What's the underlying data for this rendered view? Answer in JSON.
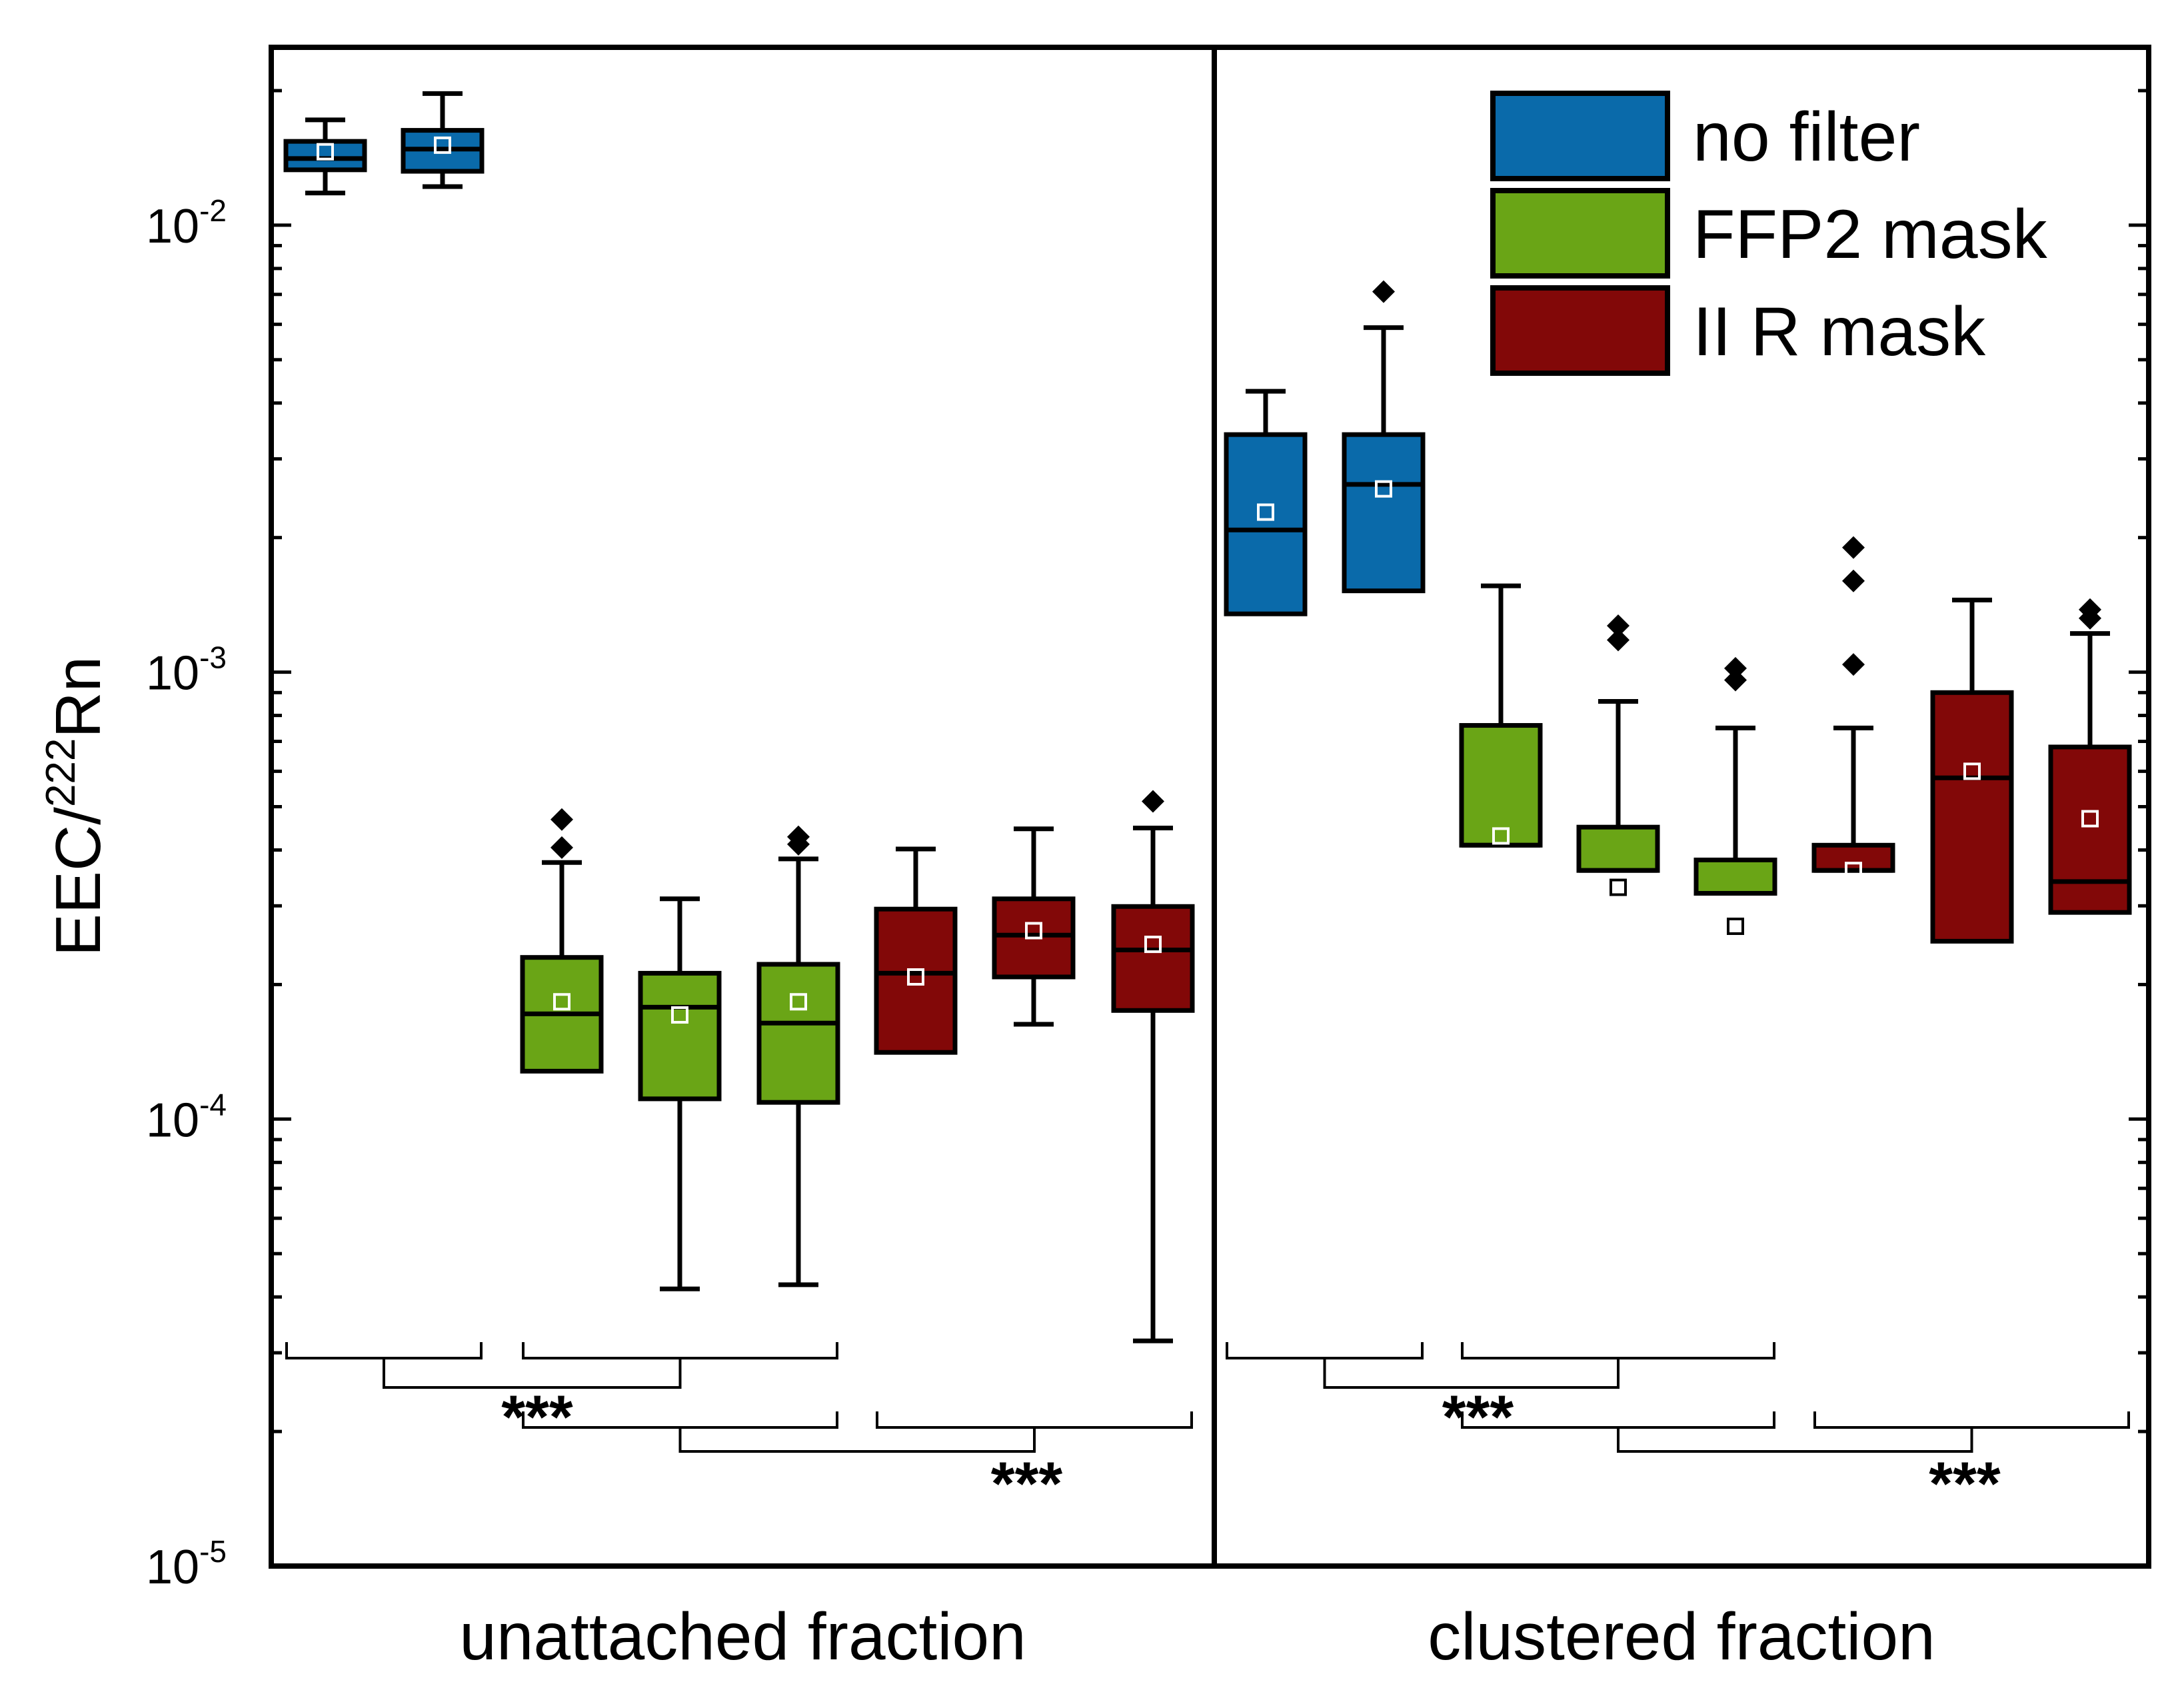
{
  "chart_data": {
    "type": "boxplot",
    "y_scale": "log",
    "ylim": [
      1e-05,
      0.025
    ],
    "ylabel": {
      "prefix": "EEC/",
      "superscript": "222",
      "suffix": "Rn"
    },
    "y_ticks": [
      {
        "value": 0.01,
        "base": "10",
        "exp": "-2"
      },
      {
        "value": 0.001,
        "base": "10",
        "exp": "-3"
      },
      {
        "value": 0.0001,
        "base": "10",
        "exp": "-4"
      },
      {
        "value": 1e-05,
        "base": "10",
        "exp": "-5"
      }
    ],
    "colors": {
      "no_filter": "#0a6aaa",
      "ffp2": "#6aa516",
      "iir": "#820808",
      "axis": "#000000"
    },
    "legend": [
      {
        "key": "no_filter",
        "label": "no filter"
      },
      {
        "key": "ffp2",
        "label": "FFP2 mask"
      },
      {
        "key": "iir",
        "label": "II R mask"
      }
    ],
    "panels": [
      {
        "label": "unattached fraction",
        "boxes": [
          {
            "group": "no_filter",
            "whisker_low": 0.0118,
            "q1": 0.0133,
            "median": 0.0141,
            "q3": 0.0154,
            "whisker_high": 0.0172,
            "mean": 0.0146,
            "outliers": []
          },
          {
            "group": "no_filter",
            "whisker_low": 0.0122,
            "q1": 0.0132,
            "median": 0.0148,
            "q3": 0.0163,
            "whisker_high": 0.0197,
            "mean": 0.0151,
            "outliers": []
          },
          {
            "group": "ffp2",
            "whisker_low": 0.000128,
            "q1": 0.000128,
            "median": 0.000172,
            "q3": 0.00023,
            "whisker_high": 0.000375,
            "mean": 0.000183,
            "outliers": [
              0.000405,
              0.000468
            ]
          },
          {
            "group": "ffp2",
            "whisker_low": 4.17e-05,
            "q1": 0.000111,
            "median": 0.000178,
            "q3": 0.000212,
            "whisker_high": 0.000311,
            "mean": 0.000171,
            "outliers": []
          },
          {
            "group": "ffp2",
            "whisker_low": 4.26e-05,
            "q1": 0.000109,
            "median": 0.000164,
            "q3": 0.000222,
            "whisker_high": 0.000382,
            "mean": 0.000183,
            "outliers": [
              0.000412,
              0.000428
            ]
          },
          {
            "group": "iir",
            "whisker_low": 0.000141,
            "q1": 0.000141,
            "median": 0.000212,
            "q3": 0.000295,
            "whisker_high": 0.000402,
            "mean": 0.000208,
            "outliers": []
          },
          {
            "group": "iir",
            "whisker_low": 0.000163,
            "q1": 0.000208,
            "median": 0.000258,
            "q3": 0.000311,
            "whisker_high": 0.000446,
            "mean": 0.000264,
            "outliers": []
          },
          {
            "group": "iir",
            "whisker_low": 3.19e-05,
            "q1": 0.000175,
            "median": 0.000239,
            "q3": 0.000299,
            "whisker_high": 0.000448,
            "mean": 0.000246,
            "outliers": [
              0.000514
            ]
          }
        ],
        "comparisons": [
          {
            "left": [
              1,
              2
            ],
            "right": [
              3,
              5
            ],
            "sig": "***"
          },
          {
            "left": [
              3,
              5
            ],
            "right": [
              6,
              8
            ],
            "sig": "***"
          }
        ]
      },
      {
        "label": "clustered fraction",
        "boxes": [
          {
            "group": "no_filter",
            "whisker_low": 0.00135,
            "q1": 0.00135,
            "median": 0.00208,
            "q3": 0.0034,
            "whisker_high": 0.00425,
            "mean": 0.00228,
            "outliers": []
          },
          {
            "group": "no_filter",
            "whisker_low": 0.00152,
            "q1": 0.00152,
            "median": 0.00263,
            "q3": 0.0034,
            "whisker_high": 0.0059,
            "mean": 0.00257,
            "outliers": [
              0.0071
            ]
          },
          {
            "group": "ffp2",
            "whisker_low": 0.00041,
            "q1": 0.00041,
            "median": 0.00041,
            "q3": 0.00076,
            "whisker_high": 0.00156,
            "mean": 0.00043,
            "outliers": []
          },
          {
            "group": "ffp2",
            "whisker_low": 0.00036,
            "q1": 0.00036,
            "median": 0.00036,
            "q3": 0.00045,
            "whisker_high": 0.00086,
            "mean": 0.00033,
            "outliers": [
              0.00118,
              0.00127
            ]
          },
          {
            "group": "ffp2",
            "whisker_low": 0.00032,
            "q1": 0.00032,
            "median": 0.00032,
            "q3": 0.00038,
            "whisker_high": 0.00075,
            "mean": 0.00027,
            "outliers": [
              0.00096,
              0.00102
            ]
          },
          {
            "group": "iir",
            "whisker_low": 0.00036,
            "q1": 0.00036,
            "median": 0.00036,
            "q3": 0.00041,
            "whisker_high": 0.00075,
            "mean": 0.00036,
            "outliers": [
              0.00104,
              0.0016,
              0.0019
            ]
          },
          {
            "group": "iir",
            "whisker_low": 0.00025,
            "q1": 0.00025,
            "median": 0.00058,
            "q3": 0.0009,
            "whisker_high": 0.00145,
            "mean": 0.0006,
            "outliers": []
          },
          {
            "group": "iir",
            "whisker_low": 0.00029,
            "q1": 0.00029,
            "median": 0.00034,
            "q3": 0.00068,
            "whisker_high": 0.00122,
            "mean": 0.00047,
            "outliers": [
              0.00132,
              0.00138
            ]
          }
        ],
        "comparisons": [
          {
            "left": [
              1,
              2
            ],
            "right": [
              3,
              5
            ],
            "sig": "***"
          },
          {
            "left": [
              3,
              5
            ],
            "right": [
              6,
              8
            ],
            "sig": "***"
          }
        ]
      }
    ]
  }
}
